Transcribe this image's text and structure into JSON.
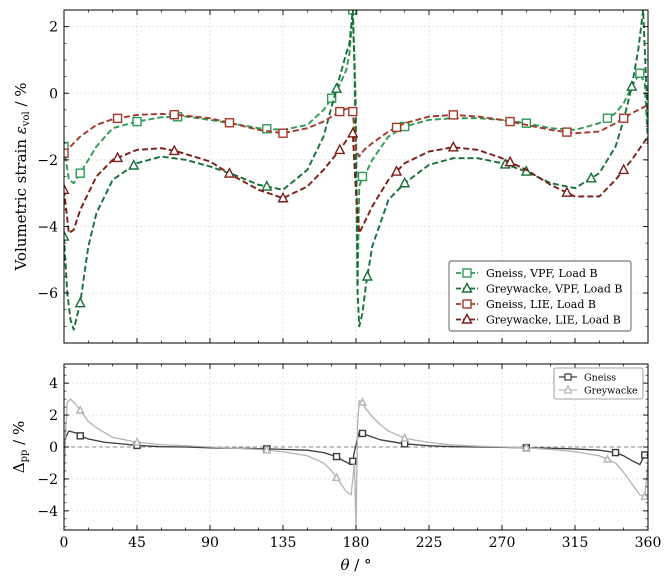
{
  "chart_data": [
    {
      "type": "line",
      "title": "",
      "xlabel": "",
      "ylabel": "Volumetric strain ε_vol / %",
      "ylabel_main": "Volumetric strain ",
      "ylabel_sym": "ε",
      "ylabel_sub": "vol",
      "ylabel_unit": " / %",
      "xlim": [
        0,
        360
      ],
      "ylim": [
        -7.5,
        2.5
      ],
      "xticks": [
        0,
        45,
        90,
        135,
        180,
        225,
        270,
        315,
        360
      ],
      "yticks": [
        -6,
        -4,
        -2,
        0,
        2
      ],
      "grid": true,
      "legend_position": "lower-right",
      "colors": {
        "vpf": "#1f7a3f",
        "vpf_marker": "#3aa35f",
        "lie": "#8b2318",
        "lie_marker": "#a63a2c"
      },
      "series": [
        {
          "name": "Gneiss, VPF, Load B",
          "color": "#2e9a55",
          "marker": "square",
          "x": [
            0,
            3,
            6,
            10,
            20,
            30,
            45,
            60,
            75,
            90,
            105,
            120,
            135,
            150,
            160,
            165,
            170,
            174,
            176,
            178,
            179,
            180,
            181,
            182,
            184,
            186,
            190,
            200,
            210,
            225,
            240,
            255,
            270,
            285,
            300,
            315,
            330,
            340,
            345,
            350,
            355,
            358,
            360
          ],
          "y": [
            -1.6,
            -2.6,
            -2.7,
            -2.4,
            -1.6,
            -1.05,
            -0.85,
            -0.72,
            -0.7,
            -0.8,
            -0.92,
            -1.05,
            -1.1,
            -0.95,
            -0.5,
            -0.15,
            0.25,
            0.7,
            1.2,
            2.5,
            1.0,
            -0.5,
            -5.8,
            -2.8,
            -2.5,
            -2.4,
            -2.0,
            -1.3,
            -1.0,
            -0.8,
            -0.75,
            -0.75,
            -0.8,
            -0.9,
            -1.05,
            -1.1,
            -0.9,
            -0.6,
            -0.3,
            0.2,
            0.6,
            0.3,
            -1.6
          ],
          "markers_x": [
            0,
            10,
            45,
            70,
            125,
            165,
            178,
            184,
            210,
            285,
            335,
            355
          ]
        },
        {
          "name": "Greywacke, VPF, Load B",
          "color": "#17703a",
          "marker": "triangle",
          "x": [
            0,
            2,
            4,
            6,
            10,
            15,
            20,
            30,
            45,
            60,
            75,
            90,
            105,
            120,
            135,
            150,
            160,
            165,
            170,
            174,
            176,
            178,
            179,
            180,
            181,
            182,
            184,
            186,
            190,
            200,
            210,
            225,
            240,
            255,
            270,
            285,
            300,
            315,
            330,
            340,
            345,
            350,
            354,
            357,
            360
          ],
          "y": [
            -4.3,
            -6.0,
            -6.8,
            -7.1,
            -6.3,
            -4.6,
            -3.6,
            -2.6,
            -2.1,
            -1.9,
            -2.0,
            -2.2,
            -2.45,
            -2.75,
            -2.9,
            -2.3,
            -1.3,
            -0.4,
            0.5,
            1.2,
            1.5,
            2.5,
            0.9,
            -2.0,
            -6.0,
            -7.0,
            -6.6,
            -5.8,
            -4.6,
            -3.2,
            -2.7,
            -2.15,
            -1.95,
            -1.95,
            -2.1,
            -2.35,
            -2.7,
            -2.85,
            -2.4,
            -1.6,
            -0.8,
            0.2,
            1.3,
            2.5,
            -1.0
          ],
          "markers_x": [
            0,
            10,
            43,
            125,
            168,
            187,
            210,
            272,
            285,
            325,
            350
          ]
        },
        {
          "name": "Gneiss, LIE, Load B",
          "color": "#a3392a",
          "marker": "square",
          "x": [
            0,
            5,
            10,
            20,
            30,
            45,
            60,
            70,
            90,
            105,
            120,
            135,
            150,
            160,
            170,
            175,
            178,
            180,
            182,
            185,
            190,
            200,
            210,
            225,
            240,
            255,
            270,
            285,
            300,
            315,
            330,
            340,
            350,
            360
          ],
          "y": [
            -1.8,
            -1.55,
            -1.3,
            -0.95,
            -0.78,
            -0.65,
            -0.62,
            -0.65,
            -0.75,
            -0.92,
            -1.1,
            -1.2,
            -1.05,
            -0.85,
            -0.55,
            -0.45,
            -0.55,
            -1.7,
            -1.9,
            -1.7,
            -1.5,
            -1.15,
            -0.9,
            -0.7,
            -0.65,
            -0.7,
            -0.8,
            -0.95,
            -1.1,
            -1.2,
            -1.15,
            -0.9,
            -0.6,
            -0.35
          ],
          "markers_x": [
            0,
            33,
            68,
            102,
            135,
            170,
            178,
            205,
            240,
            275,
            310,
            345
          ]
        },
        {
          "name": "Greywacke, LIE, Load B",
          "color": "#7a1f17",
          "marker": "triangle",
          "x": [
            0,
            3,
            6,
            10,
            20,
            30,
            45,
            60,
            70,
            90,
            105,
            120,
            135,
            150,
            160,
            170,
            175,
            178,
            180,
            182,
            185,
            190,
            200,
            210,
            225,
            240,
            255,
            270,
            285,
            300,
            315,
            330,
            340,
            350,
            360
          ],
          "y": [
            -2.9,
            -4.2,
            -4.1,
            -3.5,
            -2.5,
            -2.0,
            -1.7,
            -1.65,
            -1.75,
            -2.05,
            -2.5,
            -2.9,
            -3.15,
            -2.8,
            -2.3,
            -1.7,
            -1.35,
            -1.2,
            -3.0,
            -4.2,
            -3.9,
            -3.4,
            -2.6,
            -2.1,
            -1.75,
            -1.62,
            -1.7,
            -1.95,
            -2.3,
            -2.75,
            -3.1,
            -3.1,
            -2.6,
            -2.0,
            -1.3
          ],
          "markers_x": [
            0,
            33,
            68,
            102,
            135,
            170,
            178,
            205,
            240,
            275,
            310,
            345
          ]
        }
      ]
    },
    {
      "type": "line",
      "title": "",
      "xlabel": "θ / °",
      "xlabel_sym": "θ",
      "xlabel_unit": " / °",
      "ylabel": "Δ_pp / %",
      "ylabel_sym": "Δ",
      "ylabel_sub": "pp",
      "ylabel_unit": " / %",
      "xlim": [
        0,
        360
      ],
      "ylim": [
        -5.2,
        5.2
      ],
      "xticks": [
        0,
        45,
        90,
        135,
        180,
        225,
        270,
        315,
        360
      ],
      "yticks": [
        -4,
        -2,
        0,
        2,
        4
      ],
      "grid": true,
      "reference_line_y": 0,
      "legend_position": "upper-right",
      "series": [
        {
          "name": "Gneiss",
          "color": "#3a3a3a",
          "marker": "square",
          "x": [
            0,
            1,
            3,
            5,
            8,
            10,
            15,
            25,
            45,
            60,
            75,
            90,
            105,
            120,
            135,
            150,
            160,
            168,
            172,
            176,
            178,
            179,
            180,
            181,
            182,
            184,
            188,
            195,
            210,
            225,
            240,
            255,
            270,
            285,
            300,
            315,
            330,
            340,
            345,
            350,
            355,
            358,
            360
          ],
          "y": [
            -0.5,
            0.6,
            1.0,
            0.95,
            0.85,
            0.7,
            0.5,
            0.3,
            0.1,
            0.02,
            0.0,
            -0.05,
            -0.08,
            -0.1,
            -0.15,
            -0.2,
            -0.35,
            -0.6,
            -0.85,
            -1.05,
            -0.9,
            -0.3,
            0.1,
            0.6,
            0.9,
            0.85,
            0.7,
            0.45,
            0.2,
            0.08,
            0.02,
            0.0,
            -0.02,
            -0.05,
            -0.08,
            -0.12,
            -0.2,
            -0.35,
            -0.55,
            -0.85,
            -1.1,
            -0.5,
            -0.3
          ],
          "markers_x": [
            10,
            45,
            125,
            168,
            178,
            184,
            210,
            285,
            340,
            358
          ]
        },
        {
          "name": "Greywacke",
          "color": "#b3b3b3",
          "marker": "triangle",
          "x": [
            0,
            1,
            2,
            4,
            7,
            10,
            15,
            20,
            30,
            45,
            60,
            75,
            90,
            105,
            120,
            135,
            150,
            160,
            165,
            170,
            174,
            177,
            178,
            179,
            180,
            181,
            182,
            184,
            186,
            190,
            195,
            200,
            210,
            225,
            240,
            255,
            270,
            285,
            300,
            315,
            330,
            340,
            345,
            350,
            355,
            358,
            360
          ],
          "y": [
            -2.5,
            1.0,
            2.8,
            3.0,
            2.7,
            2.3,
            1.6,
            1.2,
            0.6,
            0.3,
            0.15,
            0.08,
            0.0,
            -0.08,
            -0.15,
            -0.3,
            -0.55,
            -1.0,
            -1.5,
            -2.2,
            -2.8,
            -3.0,
            -2.0,
            -1.0,
            -5.0,
            1.5,
            2.9,
            2.8,
            2.4,
            1.9,
            1.4,
            1.0,
            0.55,
            0.28,
            0.12,
            0.05,
            0.0,
            -0.05,
            -0.15,
            -0.3,
            -0.55,
            -1.0,
            -1.6,
            -2.3,
            -3.0,
            -3.1,
            -1.0
          ],
          "markers_x": [
            10,
            45,
            125,
            168,
            184,
            210,
            285,
            335,
            358
          ]
        }
      ]
    }
  ]
}
